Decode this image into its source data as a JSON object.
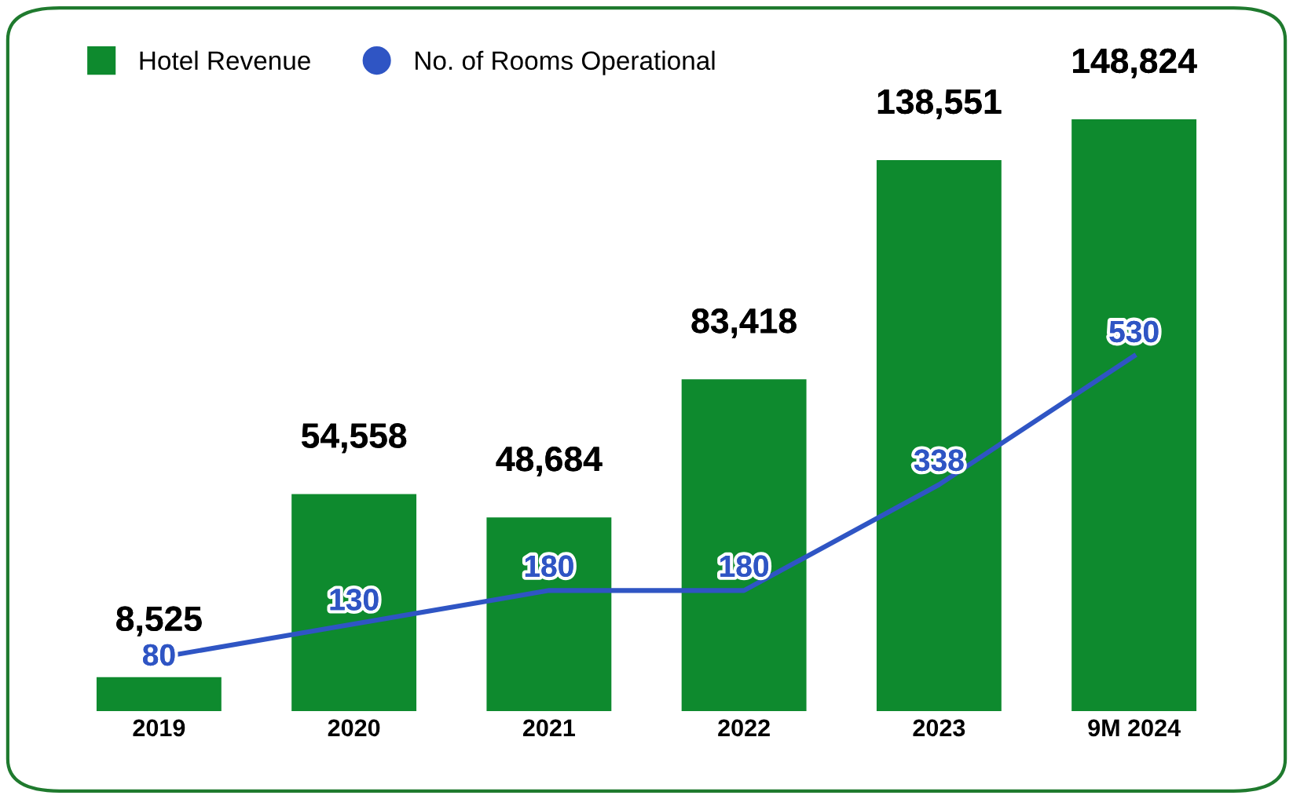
{
  "chart_data": {
    "type": "bar",
    "categories": [
      "2019",
      "2020",
      "2021",
      "2022",
      "2023",
      "9M 2024"
    ],
    "series": [
      {
        "name": "Hotel Revenue",
        "color": "#0e8a2e",
        "values": [
          8525,
          54558,
          48684,
          83418,
          138551,
          148824
        ],
        "value_labels": [
          "8,525",
          "54,558",
          "48,684",
          "83,418",
          "138,551",
          "148,824"
        ]
      },
      {
        "name": "No. of Rooms Operational",
        "type": "line",
        "axis": "y2",
        "color": "#2f55c4",
        "values": [
          80,
          130,
          180,
          180,
          338,
          530
        ],
        "value_labels": [
          "80",
          "130",
          "180",
          "180",
          "338",
          "530"
        ]
      }
    ],
    "tick_labels": "x",
    "grid": false,
    "legend": "top left",
    "marker": "none",
    "line_style": "solid"
  }
}
